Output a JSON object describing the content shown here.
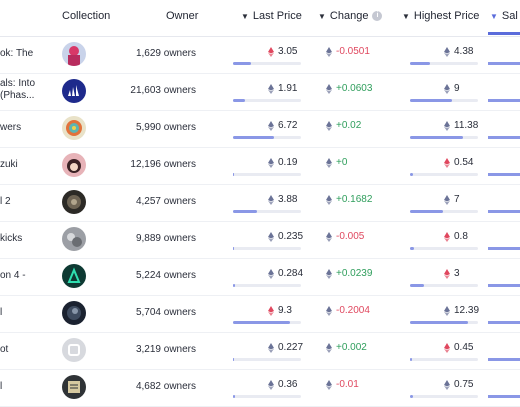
{
  "header": {
    "collection": "Collection",
    "owner": "Owner",
    "last_price": "Last Price",
    "change": "Change",
    "highest_price": "Highest Price",
    "sales": "Sal",
    "info_glyph": "i"
  },
  "colors": {
    "accent": "#5b6cdb",
    "positive": "#2f9e5c",
    "negative": "#e0485f",
    "eth_up": "#e0485f",
    "eth": "#6b7397"
  },
  "rows": [
    {
      "name1": "ok: The",
      "name2": "",
      "owners": "1,629 owners",
      "last_price": "3.05",
      "last_eth": "red",
      "last_fill": 0.27,
      "change": "-0.0501",
      "change_dir": "neg",
      "highest": "4.38",
      "high_eth": "gray",
      "high_fill": 0.3,
      "avatar": "avatar-pink"
    },
    {
      "name1": "als: Into",
      "name2": "(Phas...",
      "owners": "21,603 owners",
      "last_price": "1.91",
      "last_eth": "gray",
      "last_fill": 0.17,
      "change": "+0.0603",
      "change_dir": "pos",
      "highest": "9",
      "high_eth": "gray",
      "high_fill": 0.62,
      "avatar": "avatar-adidas"
    },
    {
      "name1": "wers",
      "name2": "",
      "owners": "5,990 owners",
      "last_price": "6.72",
      "last_eth": "gray",
      "last_fill": 0.6,
      "change": "+0.02",
      "change_dir": "pos",
      "highest": "11.38",
      "high_eth": "gray",
      "high_fill": 0.78,
      "avatar": "avatar-flower"
    },
    {
      "name1": "zuki",
      "name2": "",
      "owners": "12,196 owners",
      "last_price": "0.19",
      "last_eth": "gray",
      "last_fill": 0.02,
      "change": "+0",
      "change_dir": "pos",
      "highest": "0.54",
      "high_eth": "red",
      "high_fill": 0.04,
      "avatar": "avatar-azuki"
    },
    {
      "name1": "l 2",
      "name2": "",
      "owners": "4,257 owners",
      "last_price": "3.88",
      "last_eth": "gray",
      "last_fill": 0.35,
      "change": "+0.1682",
      "change_dir": "pos",
      "highest": "7",
      "high_eth": "gray",
      "high_fill": 0.48,
      "avatar": "avatar-dark"
    },
    {
      "name1": "kicks",
      "name2": "",
      "owners": "9,889 owners",
      "last_price": "0.235",
      "last_eth": "gray",
      "last_fill": 0.02,
      "change": "-0.005",
      "change_dir": "neg",
      "highest": "0.8",
      "high_eth": "red",
      "high_fill": 0.06,
      "avatar": "avatar-gray"
    },
    {
      "name1": "on 4 -",
      "name2": "",
      "owners": "5,224 owners",
      "last_price": "0.284",
      "last_eth": "gray",
      "last_fill": 0.03,
      "change": "+0.0239",
      "change_dir": "pos",
      "highest": "3",
      "high_eth": "red",
      "high_fill": 0.21,
      "avatar": "avatar-teal"
    },
    {
      "name1": "l",
      "name2": "",
      "owners": "5,704 owners",
      "last_price": "9.3",
      "last_eth": "red",
      "last_fill": 0.84,
      "change": "-0.2004",
      "change_dir": "neg",
      "highest": "12.39",
      "high_eth": "gray",
      "high_fill": 0.86,
      "avatar": "avatar-night"
    },
    {
      "name1": "ot",
      "name2": "",
      "owners": "3,219 owners",
      "last_price": "0.227",
      "last_eth": "gray",
      "last_fill": 0.02,
      "change": "+0.002",
      "change_dir": "pos",
      "highest": "0.45",
      "high_eth": "red",
      "high_fill": 0.03,
      "avatar": "avatar-silver"
    },
    {
      "name1": "l",
      "name2": "",
      "owners": "4,682 owners",
      "last_price": "0.36",
      "last_eth": "gray",
      "last_fill": 0.03,
      "change": "-0.01",
      "change_dir": "neg",
      "highest": "0.75",
      "high_eth": "gray",
      "high_fill": 0.05,
      "avatar": "avatar-card"
    }
  ]
}
